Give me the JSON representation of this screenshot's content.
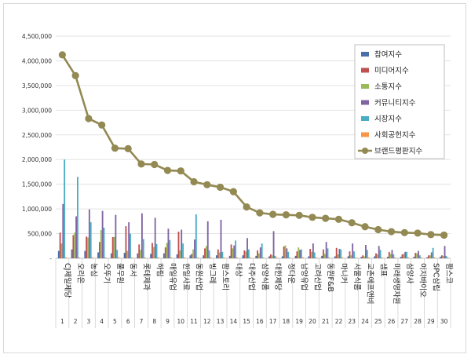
{
  "chart_data": {
    "type": "bar",
    "title": "",
    "xlabel": "",
    "ylabel": "",
    "ylim": [
      0,
      4500000
    ],
    "yticks": [
      "-",
      "500,000",
      "1,000,000",
      "1,500,000",
      "2,000,000",
      "2,500,000",
      "3,000,000",
      "3,500,000",
      "4,000,000",
      "4,500,000"
    ],
    "ytick_values": [
      0,
      500000,
      1000000,
      1500000,
      2000000,
      2500000,
      3000000,
      3500000,
      4000000,
      4500000
    ],
    "grid": true,
    "legend_position": "top-right",
    "categories": [
      "CJ제일제당",
      "오리온",
      "농심",
      "오뚜기",
      "풀무원",
      "동서",
      "롯데제과",
      "하림",
      "매일유업",
      "한일사료",
      "동원산업",
      "빙그레",
      "팜스토리",
      "대상",
      "대주산업",
      "삼양식품",
      "대한제당",
      "정다운",
      "남양유업",
      "고려산업",
      "동원F&B",
      "마니커",
      "서울식품",
      "교촌에프앤비",
      "샘표",
      "미래생명자원",
      "삼양사",
      "이지바이오",
      "SPC삼립",
      "팜스코"
    ],
    "ranks": [
      "1",
      "2",
      "3",
      "4",
      "5",
      "6",
      "7",
      "8",
      "9",
      "10",
      "11",
      "12",
      "13",
      "14",
      "15",
      "16",
      "17",
      "18",
      "19",
      "20",
      "21",
      "22",
      "23",
      "24",
      "25",
      "26",
      "27",
      "28",
      "29",
      "30"
    ],
    "series": [
      {
        "name": "참여지수",
        "color": "#4a6fa8",
        "kind": "bar",
        "values": [
          150000,
          180000,
          150000,
          120000,
          100000,
          110000,
          100000,
          90000,
          100000,
          80000,
          60000,
          60000,
          60000,
          50000,
          60000,
          50000,
          40000,
          40000,
          50000,
          40000,
          50000,
          40000,
          40000,
          30000,
          40000,
          30000,
          30000,
          30000,
          20000,
          30000
        ]
      },
      {
        "name": "미디어지수",
        "color": "#c0504d",
        "kind": "bar",
        "values": [
          520000,
          470000,
          440000,
          330000,
          430000,
          650000,
          280000,
          310000,
          220000,
          540000,
          90000,
          200000,
          180000,
          280000,
          160000,
          160000,
          80000,
          240000,
          140000,
          190000,
          180000,
          210000,
          140000,
          60000,
          100000,
          130000,
          80000,
          110000,
          60000,
          60000
        ]
      },
      {
        "name": "소통지수",
        "color": "#9bbb59",
        "kind": "bar",
        "values": [
          300000,
          520000,
          420000,
          570000,
          430000,
          150000,
          170000,
          230000,
          310000,
          160000,
          180000,
          250000,
          120000,
          200000,
          140000,
          100000,
          60000,
          260000,
          220000,
          130000,
          90000,
          80000,
          60000,
          40000,
          80000,
          90000,
          90000,
          100000,
          60000,
          50000
        ]
      },
      {
        "name": "커뮤니티지수",
        "color": "#8064a2",
        "kind": "bar",
        "values": [
          1100000,
          850000,
          990000,
          960000,
          880000,
          730000,
          910000,
          820000,
          600000,
          580000,
          380000,
          750000,
          780000,
          260000,
          410000,
          220000,
          550000,
          200000,
          170000,
          300000,
          330000,
          190000,
          300000,
          270000,
          250000,
          170000,
          130000,
          150000,
          120000,
          250000
        ]
      },
      {
        "name": "시장지수",
        "color": "#4bacc6",
        "kind": "bar",
        "values": [
          2000000,
          1650000,
          730000,
          620000,
          170000,
          500000,
          390000,
          290000,
          370000,
          300000,
          890000,
          160000,
          130000,
          360000,
          180000,
          300000,
          50000,
          130000,
          180000,
          120000,
          200000,
          180000,
          140000,
          170000,
          170000,
          80000,
          130000,
          60000,
          210000,
          50000
        ]
      },
      {
        "name": "사회공헌지수",
        "color": "#f79646",
        "kind": "bar",
        "values": [
          20000,
          20000,
          20000,
          20000,
          20000,
          20000,
          20000,
          20000,
          20000,
          20000,
          20000,
          20000,
          20000,
          20000,
          20000,
          20000,
          20000,
          20000,
          20000,
          20000,
          20000,
          20000,
          20000,
          20000,
          20000,
          20000,
          20000,
          20000,
          20000,
          20000
        ]
      },
      {
        "name": "브랜드평판지수",
        "color": "#938953",
        "kind": "line",
        "values": [
          4120000,
          3700000,
          2830000,
          2700000,
          2230000,
          2220000,
          1910000,
          1900000,
          1780000,
          1770000,
          1550000,
          1490000,
          1440000,
          1350000,
          1040000,
          920000,
          890000,
          880000,
          870000,
          830000,
          810000,
          790000,
          720000,
          640000,
          580000,
          540000,
          520000,
          510000,
          480000,
          470000
        ]
      }
    ]
  }
}
